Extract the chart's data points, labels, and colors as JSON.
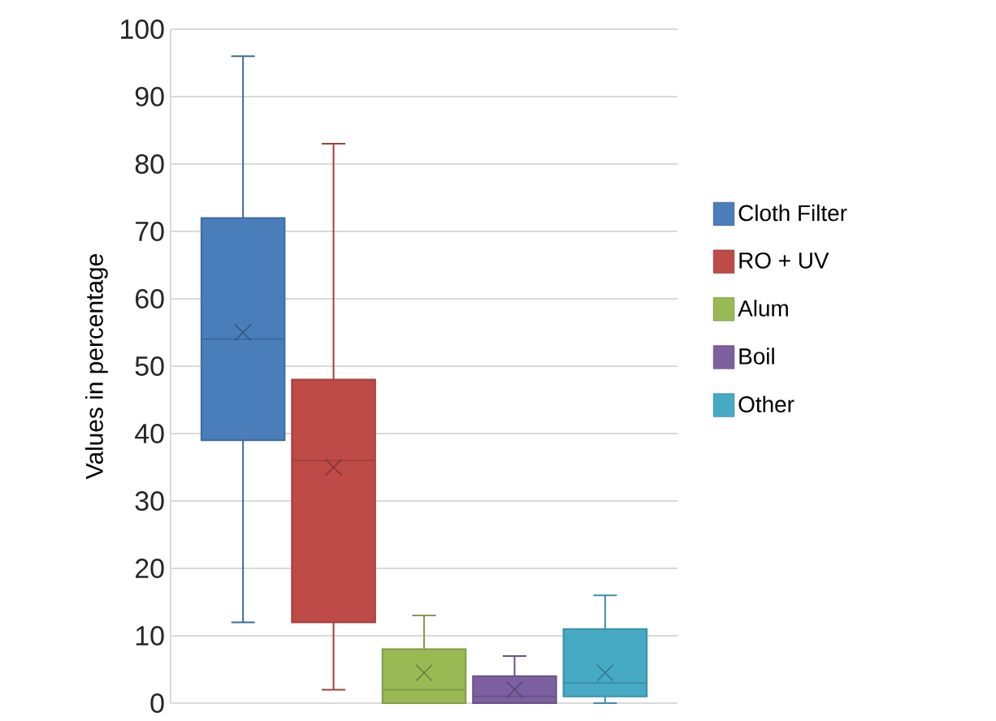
{
  "chart_data": {
    "type": "box",
    "ylabel": "Values in percentage",
    "categories": [
      null
    ],
    "ylim": [
      0,
      100
    ],
    "yticks": [
      0,
      10,
      20,
      30,
      40,
      50,
      60,
      70,
      80,
      90,
      100
    ],
    "grid": "y",
    "legend": "right",
    "series": [
      {
        "name": "Cloth Filter",
        "color": "#4a7ebb",
        "boxes": [
          {
            "low": 12,
            "q1": 39,
            "median": 54,
            "q3": 72,
            "high": 96,
            "mean": 55
          }
        ]
      },
      {
        "name": "RO + UV",
        "color": "#be4b48",
        "boxes": [
          {
            "low": 2,
            "q1": 12,
            "median": 36,
            "q3": 48,
            "high": 83,
            "mean": 35
          }
        ]
      },
      {
        "name": "Alum",
        "color": "#98b954",
        "boxes": [
          {
            "low": 0,
            "q1": 0,
            "median": 2,
            "q3": 8,
            "high": 13,
            "mean": 4.5
          }
        ]
      },
      {
        "name": "Boil",
        "color": "#7d60a0",
        "boxes": [
          {
            "low": 0,
            "q1": 0,
            "median": 1,
            "q3": 4,
            "high": 7,
            "mean": 2
          }
        ]
      },
      {
        "name": "Other",
        "color": "#46aac5",
        "boxes": [
          {
            "low": 0,
            "q1": 1,
            "median": 3,
            "q3": 11,
            "high": 16,
            "mean": 4.5
          }
        ]
      }
    ]
  }
}
